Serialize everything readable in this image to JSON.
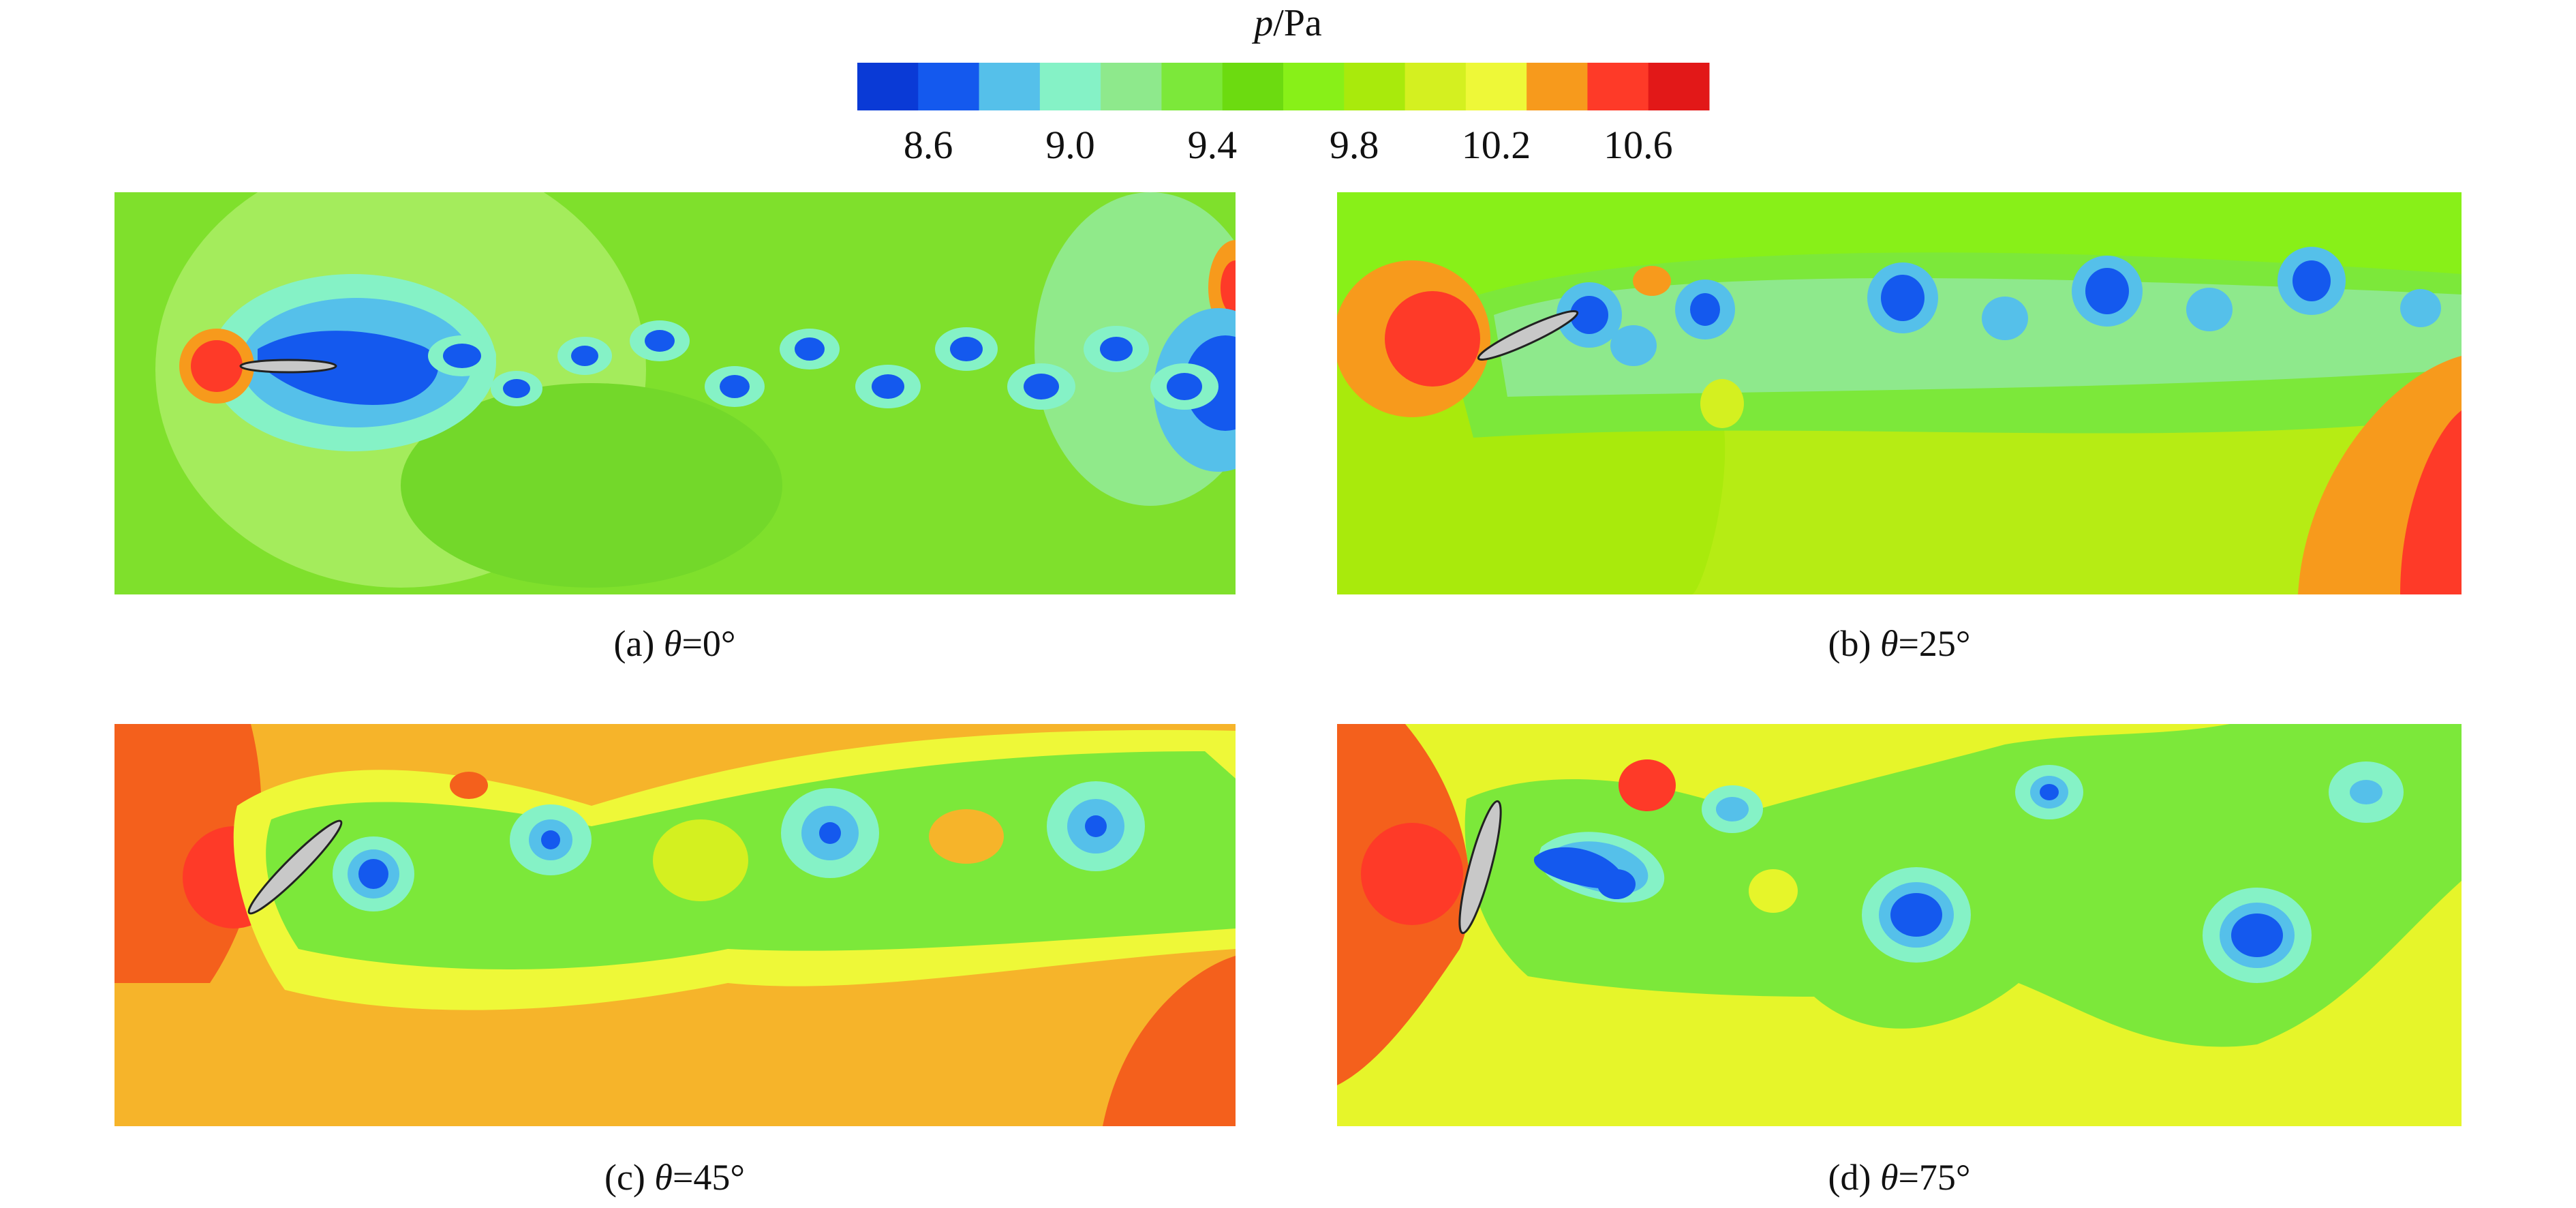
{
  "colorbar": {
    "title_var": "p",
    "title_unit": "/Pa",
    "min": 8.4,
    "max": 10.8,
    "ticks": [
      8.6,
      9.0,
      9.4,
      9.8,
      10.2,
      10.6
    ],
    "tick_labels": [
      "8.6",
      "9.0",
      "9.4",
      "9.8",
      "10.2",
      "10.6"
    ],
    "levels": [
      {
        "color": "#0a3ad6"
      },
      {
        "color": "#1459ee"
      },
      {
        "color": "#55c0ea"
      },
      {
        "color": "#85f2c6"
      },
      {
        "color": "#8ee98c"
      },
      {
        "color": "#7ce83a"
      },
      {
        "color": "#6cdb10"
      },
      {
        "color": "#88f018"
      },
      {
        "color": "#a9ea0c"
      },
      {
        "color": "#d4f020"
      },
      {
        "color": "#eef838"
      },
      {
        "color": "#f79a1c"
      },
      {
        "color": "#fe3a28"
      },
      {
        "color": "#e21818"
      }
    ]
  },
  "chart_data": [
    {
      "type": "heatmap",
      "panel": "(a)",
      "label_prefix": "(a) ",
      "label_var": "θ",
      "label_value": "=0°",
      "theta_deg": 0,
      "background": "#7fe02c",
      "plate_color": "#c8c8c8"
    },
    {
      "type": "heatmap",
      "panel": "(b)",
      "label_prefix": "(b) ",
      "label_var": "θ",
      "label_value": "=25°",
      "theta_deg": 25,
      "background": "#b6ec14",
      "plate_color": "#c8c8c8"
    },
    {
      "type": "heatmap",
      "panel": "(c)",
      "label_prefix": "(c) ",
      "label_var": "θ",
      "label_value": "=45°",
      "theta_deg": 45,
      "background": "#f6b42a",
      "plate_color": "#c8c8c8"
    },
    {
      "type": "heatmap",
      "panel": "(d)",
      "label_prefix": "(d) ",
      "label_var": "θ",
      "label_value": "=75°",
      "theta_deg": 75,
      "background": "#e6f52a",
      "plate_color": "#c8c8c8"
    }
  ]
}
